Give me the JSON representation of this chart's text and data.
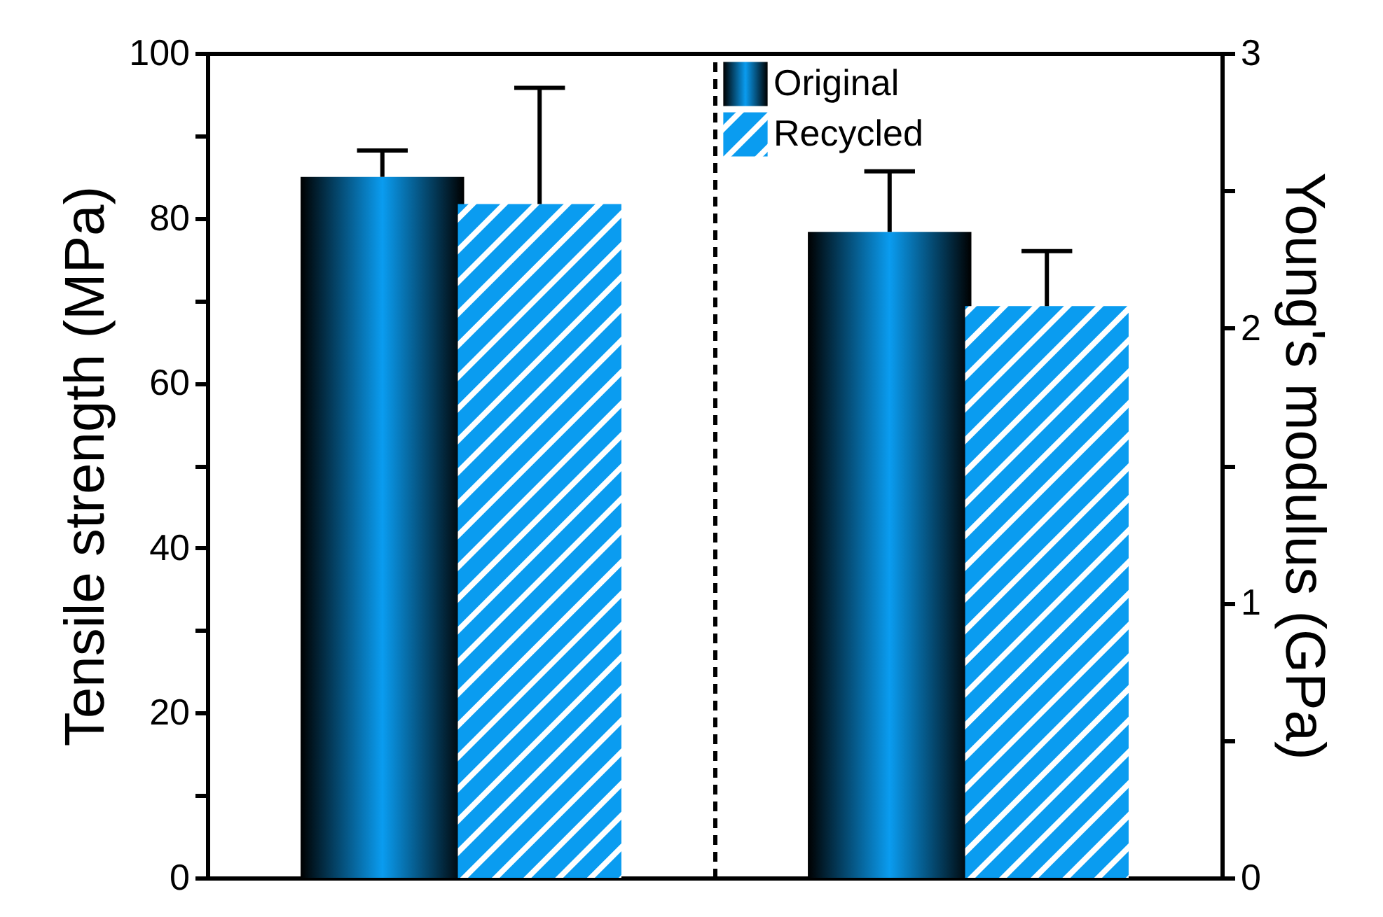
{
  "chart_data": [
    {
      "type": "bar",
      "ylabel": "Tensile strength (MPa)",
      "categories": [
        null
      ],
      "ylim": [
        0,
        100
      ],
      "yticks": [
        0,
        {
          "value": 10,
          "label": null
        },
        20,
        {
          "value": 30,
          "label": null
        },
        40,
        {
          "value": 50,
          "label": null
        },
        60,
        {
          "value": 70,
          "label": null
        },
        80,
        {
          "value": 90,
          "label": null
        },
        100
      ],
      "series": [
        {
          "color": "#0a9cf0",
          "values": [
            85.0
          ],
          "errors": [
            3.2
          ]
        },
        {
          "color": "#0a9cf0",
          "values": [
            81.7
          ],
          "errors": [
            14.1
          ]
        }
      ]
    },
    {
      "type": "bar",
      "y2label": "Young's modulus (GPa)",
      "categories": [
        null
      ],
      "y2lim": [
        0,
        3
      ],
      "y2ticks": [
        0,
        {
          "value": 0.5,
          "label": null
        },
        1,
        {
          "value": 1.5,
          "label": null
        },
        2,
        {
          "value": 2.5,
          "label": null
        },
        3
      ],
      "series": [
        {
          "name": "Original",
          "color": "#0a9cf0",
          "values": [
            2.35
          ],
          "errors": [
            0.22
          ],
          "axis": "y2"
        },
        {
          "name": "Recycled",
          "color": "#0a9cf0",
          "values": [
            2.08
          ],
          "errors": [
            0.2
          ],
          "axis": "y2"
        }
      ],
      "legend": "top left"
    }
  ]
}
